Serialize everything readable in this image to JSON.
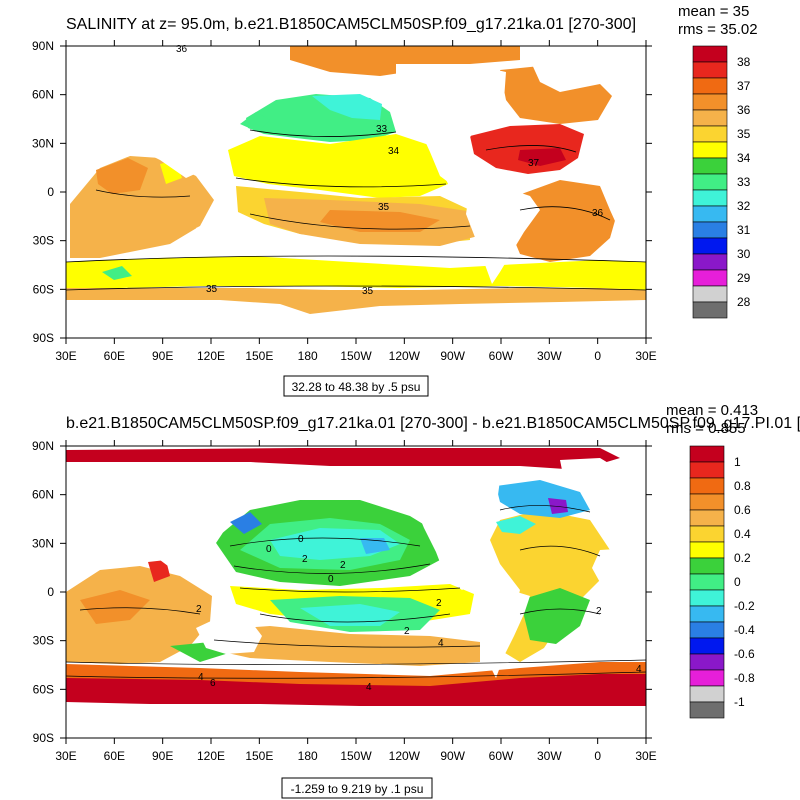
{
  "chart_data": [
    {
      "type": "heatmap",
      "subtype": "filled-contour-map",
      "title": "SALINITY at z=  95.0m, b.e21.B1850CAM5CLM50SP.f09_g17.21ka.01 [270-300]",
      "stats": {
        "mean": "mean = 35",
        "rms": "rms = 35.02"
      },
      "x_ticks": [
        "30E",
        "60E",
        "90E",
        "120E",
        "150E",
        "180",
        "150W",
        "120W",
        "90W",
        "60W",
        "30W",
        "0",
        "30E"
      ],
      "y_ticks": [
        "90N",
        "60N",
        "30N",
        "0",
        "30S",
        "60S",
        "90S"
      ],
      "colorbar": {
        "labels": [
          "38",
          "37",
          "36",
          "35",
          "34",
          "33",
          "32",
          "31",
          "30",
          "29",
          "28"
        ],
        "colors": [
          "#c4001e",
          "#e8271e",
          "#f06a12",
          "#f2902a",
          "#f5b24a",
          "#fbd430",
          "#ffff00",
          "#3bd13b",
          "#41ee85",
          "#3ff3d8",
          "#37b9f1",
          "#2a7fe4",
          "#0018ef",
          "#8a18c9",
          "#e61fd9",
          "#d1d1d1",
          "#6e6e6e"
        ]
      },
      "contour_labels": [
        "36",
        "33",
        "34",
        "37",
        "35",
        "36",
        "35",
        "35"
      ],
      "range_note": "32.28 to 48.38 by .5 psu",
      "fields": {
        "arctic": 36,
        "pacific_subarctic": 33,
        "kuroshio": 34,
        "north_pacific_gyre": 34.5,
        "equatorial_pacific": 34.5,
        "south_pacific_gyre": 35.5,
        "southern_ocean": 34.3,
        "north_atlantic": 37,
        "south_atlantic": 36,
        "indian": 35,
        "acc_margin": 35.5
      }
    },
    {
      "type": "heatmap",
      "subtype": "filled-contour-map",
      "title": "b.e21.B1850CAM5CLM50SP.f09_g17.21ka.01 [270-300] - b.e21.B1850CAM5CLM50SP.f09_g17.PI.01 [",
      "stats": {
        "mean": "mean = 0.413",
        "rms": "rms = 0.855"
      },
      "x_ticks": [
        "30E",
        "60E",
        "90E",
        "120E",
        "150E",
        "180",
        "150W",
        "120W",
        "90W",
        "60W",
        "30W",
        "0",
        "30E"
      ],
      "y_ticks": [
        "90N",
        "60N",
        "30N",
        "0",
        "30S",
        "60S",
        "90S"
      ],
      "colorbar": {
        "labels": [
          "1",
          "0.8",
          "0.6",
          "0.4",
          "0.2",
          "0",
          "-0.2",
          "-0.4",
          "-0.6",
          "-0.8",
          "-1"
        ],
        "colors": [
          "#c4001e",
          "#e8271e",
          "#f06a12",
          "#f2902a",
          "#f5b24a",
          "#fbd430",
          "#ffff00",
          "#3bd13b",
          "#41ee85",
          "#3ff3d8",
          "#37b9f1",
          "#2a7fe4",
          "#0018ef",
          "#8a18c9",
          "#e61fd9",
          "#d1d1d1",
          "#6e6e6e"
        ]
      },
      "contour_labels": [
        "0",
        "2",
        "0",
        "2",
        "0",
        "2",
        "2",
        "4",
        "4",
        "6",
        "4",
        "2",
        "2",
        "4"
      ],
      "range_note": "-1.259 to 9.219 by .1 psu",
      "fields": {
        "arctic": 1.0,
        "southern_ocean": 1.0,
        "north_pacific": 0.0,
        "equatorial_pacific": -0.1,
        "south_pacific": 0.3,
        "indian": 0.5,
        "labrador": -0.7,
        "atlantic": 0.3
      }
    }
  ]
}
